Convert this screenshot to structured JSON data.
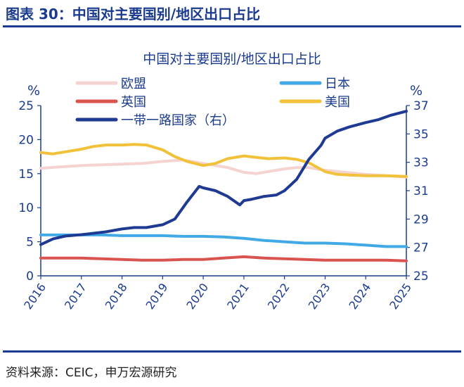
{
  "figure": {
    "title": "图表 30：中国对主要国别/地区出口占比",
    "source": "资料来源：CEIC，申万宏源研究"
  },
  "chart_data": {
    "type": "line",
    "title": "中国对主要国别/地区出口占比",
    "left_axis": {
      "unit_label": "%",
      "ylim": [
        0,
        25
      ],
      "ticks": [
        0,
        5,
        10,
        15,
        20,
        25
      ]
    },
    "right_axis": {
      "unit_label": "%",
      "ylim": [
        25,
        37
      ],
      "ticks": [
        25,
        27,
        29,
        31,
        33,
        35,
        37
      ]
    },
    "x_axis": {
      "xlim": [
        2016,
        2025
      ],
      "ticks": [
        "2016",
        "2017",
        "2018",
        "2019",
        "2020",
        "2021",
        "2022",
        "2023",
        "2024",
        "2025"
      ]
    },
    "legend_position": "top",
    "series": [
      {
        "name": "欧盟",
        "axis": "left",
        "color": "#f4d3d0",
        "x": [
          2016.0,
          2016.5,
          2017.0,
          2017.5,
          2018.0,
          2018.5,
          2019.0,
          2019.5,
          2020.0,
          2020.3,
          2020.6,
          2021.0,
          2021.3,
          2021.6,
          2022.0,
          2022.3,
          2022.6,
          2023.0,
          2023.5,
          2024.0,
          2024.5,
          2025.0
        ],
        "values": [
          15.8,
          16.0,
          16.2,
          16.3,
          16.4,
          16.5,
          16.8,
          17.0,
          16.5,
          16.2,
          15.9,
          15.2,
          15.0,
          15.3,
          15.7,
          15.9,
          15.9,
          15.5,
          15.2,
          14.9,
          14.7,
          14.5
        ]
      },
      {
        "name": "日本",
        "axis": "left",
        "color": "#41a9e6",
        "x": [
          2016.0,
          2016.5,
          2017.0,
          2017.5,
          2018.0,
          2018.5,
          2019.0,
          2019.5,
          2020.0,
          2020.5,
          2021.0,
          2021.5,
          2022.0,
          2022.5,
          2023.0,
          2023.5,
          2024.0,
          2024.5,
          2025.0
        ],
        "values": [
          6.0,
          6.0,
          6.0,
          6.0,
          5.9,
          5.9,
          5.9,
          5.8,
          5.8,
          5.7,
          5.5,
          5.2,
          5.0,
          4.8,
          4.8,
          4.7,
          4.5,
          4.3,
          4.3
        ]
      },
      {
        "name": "英国",
        "axis": "left",
        "color": "#d9534f",
        "x": [
          2016.0,
          2016.5,
          2017.0,
          2017.5,
          2018.0,
          2018.5,
          2019.0,
          2019.5,
          2020.0,
          2020.5,
          2021.0,
          2021.5,
          2022.0,
          2022.5,
          2023.0,
          2023.5,
          2024.0,
          2024.5,
          2025.0
        ],
        "values": [
          2.6,
          2.6,
          2.6,
          2.5,
          2.4,
          2.3,
          2.3,
          2.4,
          2.4,
          2.6,
          2.8,
          2.6,
          2.5,
          2.4,
          2.3,
          2.3,
          2.3,
          2.3,
          2.2
        ]
      },
      {
        "name": "美国",
        "axis": "left",
        "color": "#f2c13a",
        "x": [
          2016.0,
          2016.3,
          2016.6,
          2017.0,
          2017.3,
          2017.6,
          2018.0,
          2018.3,
          2018.6,
          2019.0,
          2019.3,
          2019.6,
          2020.0,
          2020.3,
          2020.6,
          2021.0,
          2021.3,
          2021.6,
          2022.0,
          2022.3,
          2022.6,
          2023.0,
          2023.3,
          2023.6,
          2024.0,
          2024.5,
          2025.0
        ],
        "values": [
          18.1,
          17.9,
          18.2,
          18.6,
          19.0,
          19.2,
          19.2,
          19.3,
          19.2,
          18.5,
          17.5,
          16.8,
          16.2,
          16.5,
          17.2,
          17.6,
          17.4,
          17.2,
          17.3,
          17.1,
          16.6,
          15.3,
          14.9,
          14.8,
          14.7,
          14.7,
          14.6
        ]
      },
      {
        "name": "一带一路国家（右）",
        "axis": "right",
        "color": "#1f3a93",
        "x": [
          2016.0,
          2016.3,
          2016.6,
          2017.0,
          2017.3,
          2017.6,
          2018.0,
          2018.3,
          2018.6,
          2019.0,
          2019.3,
          2019.6,
          2019.9,
          2020.0,
          2020.3,
          2020.6,
          2020.9,
          2021.0,
          2021.2,
          2021.5,
          2021.8,
          2022.0,
          2022.3,
          2022.6,
          2022.9,
          2023.0,
          2023.3,
          2023.6,
          2024.0,
          2024.3,
          2024.6,
          2025.0
        ],
        "values": [
          27.2,
          27.6,
          27.8,
          27.9,
          28.0,
          28.1,
          28.3,
          28.4,
          28.4,
          28.6,
          29.0,
          30.2,
          31.3,
          31.2,
          31.0,
          30.6,
          30.0,
          30.3,
          30.4,
          30.6,
          30.7,
          31.0,
          31.8,
          33.2,
          34.2,
          34.7,
          35.2,
          35.5,
          35.8,
          36.0,
          36.3,
          36.6
        ]
      }
    ]
  }
}
